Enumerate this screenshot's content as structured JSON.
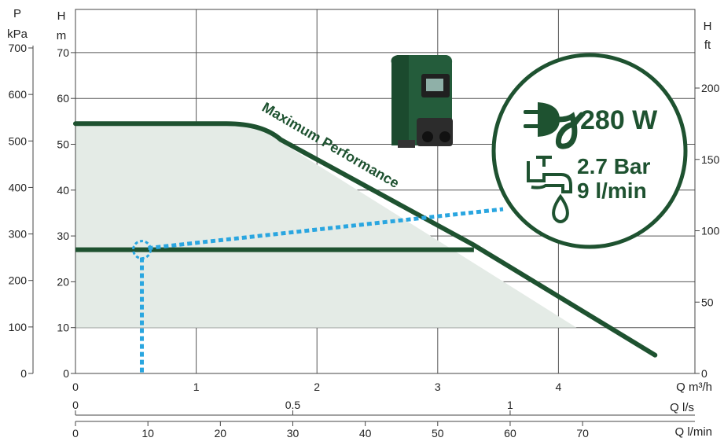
{
  "chart_data": {
    "type": "line",
    "title": "",
    "x_axes": {
      "flow_m3h": {
        "label": "Q m³/h",
        "ticks": [
          0,
          1,
          2,
          3,
          4
        ],
        "range": [
          0,
          4.8
        ]
      },
      "flow_ls": {
        "label": "Q l/s",
        "ticks": [
          0,
          0.5,
          1
        ],
        "tick_labels": [
          "0",
          "0.5",
          "1"
        ]
      },
      "flow_lmin": {
        "label": "Q l/min",
        "ticks": [
          0,
          10,
          20,
          30,
          40,
          50,
          60,
          70
        ],
        "tick_labels": [
          "0",
          "10",
          "20",
          "30",
          "40",
          "50",
          "60",
          "70"
        ]
      }
    },
    "y_axes": {
      "head_m": {
        "label_top": "H",
        "label_bottom": "m",
        "ticks": [
          0,
          10,
          20,
          30,
          40,
          50,
          60,
          70
        ],
        "range": [
          0,
          78.5
        ]
      },
      "pressure_kpa": {
        "label_top": "P",
        "label_bottom": "kPa",
        "ticks": [
          0,
          100,
          200,
          300,
          400,
          500,
          600,
          700
        ]
      },
      "head_ft": {
        "label_top": "H",
        "label_bottom": "ft",
        "ticks": [
          0,
          50,
          100,
          150,
          200
        ]
      }
    },
    "grid": true,
    "series": [
      {
        "name": "Maximum Performance",
        "x": [
          0,
          1.25,
          1.55,
          3.3,
          4.8
        ],
        "y": [
          54.5,
          54.5,
          53,
          28,
          4
        ]
      },
      {
        "name": "",
        "x": [
          0,
          3.3
        ],
        "y": [
          27,
          27
        ]
      }
    ],
    "shaded_region": {
      "x": [
        0,
        1.25,
        1.55,
        4.15,
        0
      ],
      "y": [
        54.5,
        54.5,
        53,
        10,
        10
      ]
    },
    "operating_point": {
      "x": 0.55,
      "y": 27
    },
    "annotations": {
      "curve_label": "Maximum Performance",
      "power": "280 W",
      "pressure": "2.7 Bar",
      "flow": "9 l/min"
    },
    "colors": {
      "curve": "#1e5230",
      "fill": "#e4ebe6",
      "dotted": "#2aa6e0",
      "axis": "#444444"
    },
    "icons": [
      "pump-image",
      "plug-icon",
      "faucet-icon",
      "water-drop-icon"
    ]
  }
}
